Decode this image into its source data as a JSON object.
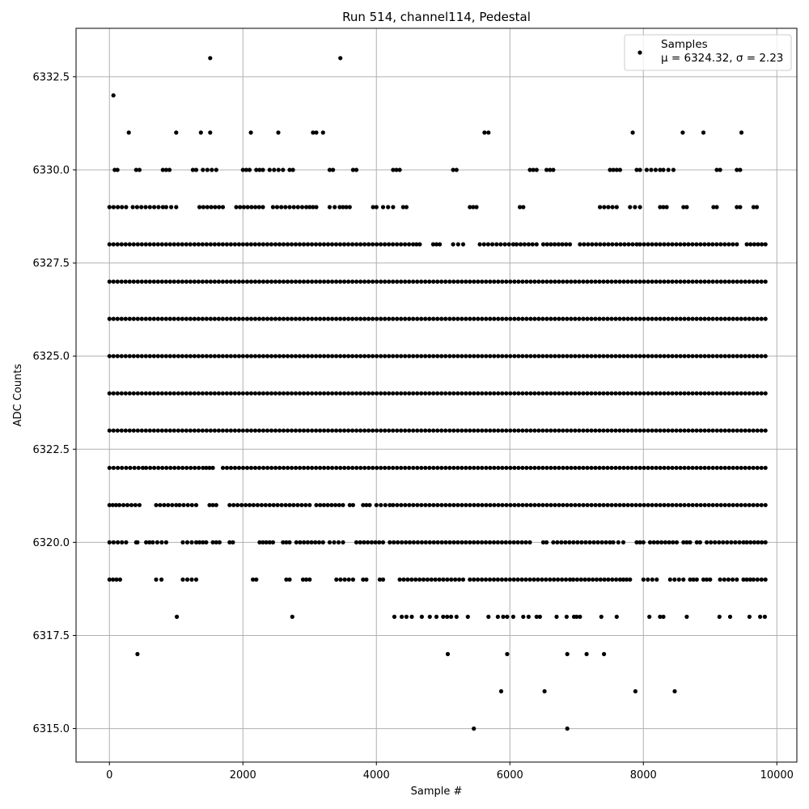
{
  "chart_data": {
    "type": "scatter",
    "title": "Run 514, channel114, Pedestal",
    "xlabel": "Sample #",
    "ylabel": "ADC Counts",
    "xlim": [
      -500,
      10300
    ],
    "ylim": [
      6314.1,
      6333.8
    ],
    "xticks": [
      0,
      2000,
      4000,
      6000,
      8000,
      10000
    ],
    "yticks": [
      6315.0,
      6317.5,
      6320.0,
      6322.5,
      6325.0,
      6327.5,
      6330.0,
      6332.5
    ],
    "xtick_labels": [
      "0",
      "2000",
      "4000",
      "6000",
      "8000",
      "10000"
    ],
    "ytick_labels": [
      "6315.0",
      "6317.5",
      "6320.0",
      "6322.5",
      "6325.0",
      "6327.5",
      "6330.0",
      "6332.5"
    ],
    "grid": true,
    "legend_position": "top-right",
    "marker_color": "#000000",
    "series": [
      {
        "name": "Samples",
        "stats_label": "μ = 6324.32, σ = 2.23",
        "sample_count": 9830,
        "dense_levels": [
          {
            "y": 6319,
            "x_segments": [
              [
                0,
                160
              ],
              [
                700,
                780
              ],
              [
                1100,
                1300
              ],
              [
                2150,
                2200
              ],
              [
                2650,
                2700
              ],
              [
                2900,
                3000
              ],
              [
                3400,
                3650
              ],
              [
                3800,
                3850
              ],
              [
                4050,
                4100
              ],
              [
                4350,
                5300
              ],
              [
                5400,
                6900
              ],
              [
                6950,
                7650
              ],
              [
                7700,
                7800
              ],
              [
                8000,
                8200
              ],
              [
                8400,
                8600
              ],
              [
                8700,
                8800
              ],
              [
                8900,
                9000
              ],
              [
                9150,
                9400
              ],
              [
                9500,
                9600
              ],
              [
                9650,
                9830
              ]
            ]
          },
          {
            "y": 6320,
            "x_segments": [
              [
                0,
                250
              ],
              [
                400,
                420
              ],
              [
                550,
                600
              ],
              [
                650,
                850
              ],
              [
                1100,
                1300
              ],
              [
                1350,
                1450
              ],
              [
                1550,
                1650
              ],
              [
                1800,
                1850
              ],
              [
                2250,
                2300
              ],
              [
                2350,
                2450
              ],
              [
                2600,
                2700
              ],
              [
                2800,
                3200
              ],
              [
                3300,
                3500
              ],
              [
                3700,
                4100
              ],
              [
                4200,
                6300
              ],
              [
                6500,
                6550
              ],
              [
                6650,
                7500
              ],
              [
                7550,
                7700
              ],
              [
                7900,
                8000
              ],
              [
                8100,
                8500
              ],
              [
                8600,
                8700
              ],
              [
                8800,
                8850
              ],
              [
                8950,
                9500
              ],
              [
                9550,
                9830
              ]
            ]
          },
          {
            "y": 6321,
            "x_segments": [
              [
                0,
                100
              ],
              [
                150,
                450
              ],
              [
                700,
                1000
              ],
              [
                1050,
                1300
              ],
              [
                1500,
                1600
              ],
              [
                1800,
                3000
              ],
              [
                3100,
                3500
              ],
              [
                3600,
                3650
              ],
              [
                3800,
                3900
              ],
              [
                4000,
                4200
              ],
              [
                4250,
                9830
              ]
            ]
          },
          {
            "y": 6322,
            "x_segments": [
              [
                0,
                500
              ],
              [
                550,
                1400
              ],
              [
                1450,
                1550
              ],
              [
                1700,
                9830
              ]
            ]
          },
          {
            "y": 6323,
            "x_segments": [
              [
                0,
                9830
              ]
            ]
          },
          {
            "y": 6324,
            "x_segments": [
              [
                0,
                9830
              ]
            ]
          },
          {
            "y": 6325,
            "x_segments": [
              [
                0,
                9830
              ]
            ]
          },
          {
            "y": 6326,
            "x_segments": [
              [
                0,
                9830
              ]
            ]
          },
          {
            "y": 6327,
            "x_segments": [
              [
                0,
                9830
              ]
            ]
          },
          {
            "y": 6328,
            "x_segments": [
              [
                0,
                4550
              ],
              [
                4600,
                4650
              ],
              [
                4850,
                4950
              ],
              [
                5150,
                5300
              ],
              [
                5550,
                6050
              ],
              [
                6100,
                6400
              ],
              [
                6500,
                6900
              ],
              [
                7050,
                7900
              ],
              [
                7950,
                9400
              ],
              [
                9550,
                9830
              ]
            ]
          },
          {
            "y": 6329,
            "x_segments": [
              [
                0,
                250
              ],
              [
                350,
                800
              ],
              [
                850,
                1000
              ],
              [
                1350,
                1700
              ],
              [
                1900,
                2300
              ],
              [
                2450,
                2950
              ],
              [
                3000,
                3100
              ],
              [
                3300,
                3450
              ],
              [
                3500,
                3600
              ],
              [
                3950,
                4000
              ],
              [
                4100,
                4250
              ],
              [
                4400,
                4450
              ],
              [
                5400,
                5500
              ],
              [
                6150,
                6200
              ],
              [
                7350,
                7600
              ],
              [
                7800,
                7950
              ],
              [
                8250,
                8350
              ],
              [
                8600,
                8650
              ],
              [
                9050,
                9100
              ],
              [
                9400,
                9450
              ],
              [
                9650,
                9700
              ]
            ]
          },
          {
            "y": 6330,
            "x_segments": [
              [
                80,
                120
              ],
              [
                400,
                450
              ],
              [
                800,
                900
              ],
              [
                1250,
                1300
              ],
              [
                1400,
                1600
              ],
              [
                2000,
                2100
              ],
              [
                2200,
                2300
              ],
              [
                2400,
                2600
              ],
              [
                2700,
                2750
              ],
              [
                3300,
                3350
              ],
              [
                3650,
                3700
              ],
              [
                4250,
                4350
              ],
              [
                5150,
                5200
              ],
              [
                6300,
                6400
              ],
              [
                6550,
                6650
              ],
              [
                7500,
                7550
              ],
              [
                7600,
                7650
              ],
              [
                7900,
                7950
              ],
              [
                8050,
                8250
              ],
              [
                8300,
                8450
              ],
              [
                9100,
                9150
              ],
              [
                9400,
                9450
              ]
            ]
          }
        ],
        "sparse_points": [
          [
            60,
            6332
          ],
          [
            1510,
            6333
          ],
          [
            3460,
            6333
          ],
          [
            290,
            6331
          ],
          [
            1000,
            6331
          ],
          [
            1370,
            6331
          ],
          [
            1510,
            6331
          ],
          [
            2120,
            6331
          ],
          [
            2530,
            6331
          ],
          [
            3050,
            6331
          ],
          [
            3100,
            6331
          ],
          [
            3200,
            6331
          ],
          [
            5620,
            6331
          ],
          [
            5680,
            6331
          ],
          [
            7840,
            6331
          ],
          [
            8590,
            6331
          ],
          [
            8900,
            6331
          ],
          [
            9470,
            6331
          ],
          [
            1010,
            6318
          ],
          [
            2740,
            6318
          ],
          [
            4270,
            6318
          ],
          [
            4380,
            6318
          ],
          [
            4450,
            6318
          ],
          [
            4530,
            6318
          ],
          [
            4680,
            6318
          ],
          [
            4800,
            6318
          ],
          [
            4900,
            6318
          ],
          [
            5000,
            6318
          ],
          [
            5060,
            6318
          ],
          [
            5120,
            6318
          ],
          [
            5200,
            6318
          ],
          [
            5370,
            6318
          ],
          [
            5680,
            6318
          ],
          [
            5820,
            6318
          ],
          [
            5900,
            6318
          ],
          [
            5960,
            6318
          ],
          [
            6050,
            6318
          ],
          [
            6200,
            6318
          ],
          [
            6280,
            6318
          ],
          [
            6400,
            6318
          ],
          [
            6450,
            6318
          ],
          [
            6700,
            6318
          ],
          [
            6850,
            6318
          ],
          [
            6960,
            6318
          ],
          [
            7000,
            6318
          ],
          [
            7050,
            6318
          ],
          [
            7370,
            6318
          ],
          [
            7600,
            6318
          ],
          [
            8090,
            6318
          ],
          [
            8250,
            6318
          ],
          [
            8300,
            6318
          ],
          [
            8650,
            6318
          ],
          [
            9140,
            6318
          ],
          [
            9300,
            6318
          ],
          [
            9590,
            6318
          ],
          [
            9750,
            6318
          ],
          [
            9820,
            6318
          ],
          [
            420,
            6317
          ],
          [
            5070,
            6317
          ],
          [
            5960,
            6317
          ],
          [
            6860,
            6317
          ],
          [
            7150,
            6317
          ],
          [
            7410,
            6317
          ],
          [
            5870,
            6316
          ],
          [
            6520,
            6316
          ],
          [
            7880,
            6316
          ],
          [
            8470,
            6316
          ],
          [
            5460,
            6315
          ],
          [
            6860,
            6315
          ]
        ]
      }
    ]
  }
}
